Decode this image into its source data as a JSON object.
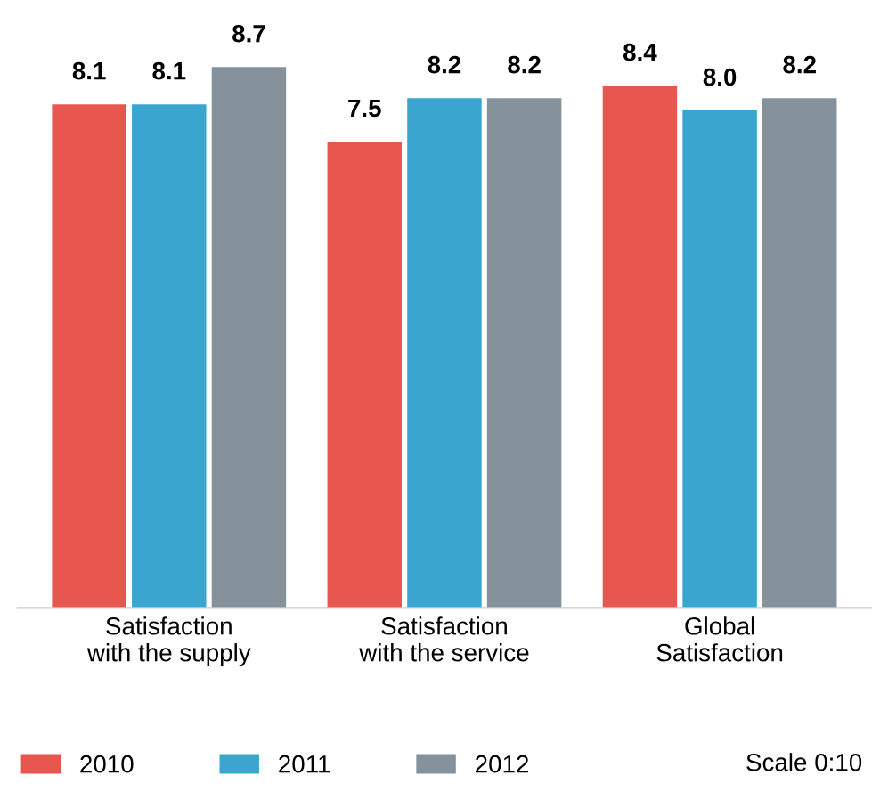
{
  "chart_data": {
    "type": "bar",
    "categories": [
      "Satisfaction\nwith the supply",
      "Satisfaction\nwith the service",
      "Global\nSatisfaction"
    ],
    "series": [
      {
        "name": "2010",
        "color": "#e8574f",
        "values": [
          8.1,
          7.5,
          8.4
        ]
      },
      {
        "name": "2011",
        "color": "#3aa6d0",
        "values": [
          8.1,
          8.2,
          8.0
        ],
        "value_labels": [
          "8.1",
          "8.2",
          "8.0"
        ]
      },
      {
        "name": "2012",
        "color": "#85929b",
        "values": [
          8.7,
          8.2,
          8.2
        ]
      }
    ],
    "tick_labels": "x",
    "data_labels": true,
    "legend": "bottom left",
    "grid": false,
    "annotations": [
      "Scale 0:10"
    ]
  }
}
